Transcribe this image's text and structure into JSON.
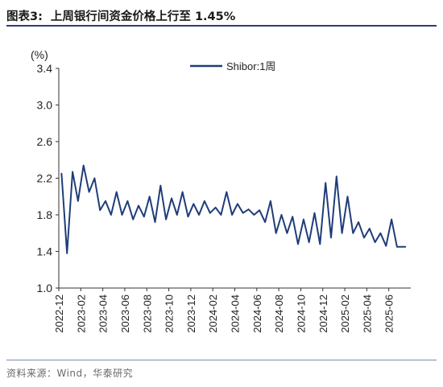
{
  "header": {
    "figure_label": "图表3:",
    "title": "上周银行间资金价格上行至 1.45%"
  },
  "source_note": "资料来源：Wind，华泰研究",
  "chart_data": {
    "type": "line",
    "unit_label": "(%)",
    "ylim": [
      1.0,
      3.4
    ],
    "y_ticks": [
      "1.0",
      "1.4",
      "1.8",
      "2.2",
      "2.6",
      "3.0",
      "3.4"
    ],
    "x_tick_labels": [
      "2022-12",
      "2023-02",
      "2023-04",
      "2023-06",
      "2023-08",
      "2023-10",
      "2023-12",
      "2024-02",
      "2024-04",
      "2024-06",
      "2024-08",
      "2024-10",
      "2024-12",
      "2025-02",
      "2025-04",
      "2025-06"
    ],
    "x_range": [
      "2022-12",
      "2025-07"
    ],
    "grid": false,
    "legend_position": "top-right",
    "line_color": "#1f3d7a",
    "series": [
      {
        "name": "Shibor:1周",
        "x": [
          "2022-12",
          "2022-12",
          "2023-01",
          "2023-01",
          "2023-02",
          "2023-02",
          "2023-03",
          "2023-03",
          "2023-04",
          "2023-04",
          "2023-05",
          "2023-05",
          "2023-06",
          "2023-06",
          "2023-07",
          "2023-07",
          "2023-08",
          "2023-08",
          "2023-09",
          "2023-09",
          "2023-10",
          "2023-10",
          "2023-11",
          "2023-11",
          "2023-12",
          "2023-12",
          "2024-01",
          "2024-01",
          "2024-02",
          "2024-02",
          "2024-03",
          "2024-03",
          "2024-04",
          "2024-04",
          "2024-05",
          "2024-05",
          "2024-06",
          "2024-06",
          "2024-07",
          "2024-07",
          "2024-08",
          "2024-08",
          "2024-09",
          "2024-09",
          "2024-10",
          "2024-10",
          "2024-11",
          "2024-11",
          "2024-12",
          "2024-12",
          "2025-01",
          "2025-01",
          "2025-02",
          "2025-02",
          "2025-03",
          "2025-03",
          "2025-04",
          "2025-04",
          "2025-05",
          "2025-05",
          "2025-06",
          "2025-06",
          "2025-07"
        ],
        "values": [
          2.25,
          1.38,
          2.27,
          1.95,
          2.34,
          2.05,
          2.2,
          1.85,
          1.95,
          1.8,
          2.05,
          1.8,
          1.95,
          1.75,
          1.9,
          1.78,
          2.0,
          1.72,
          2.12,
          1.75,
          1.98,
          1.8,
          2.05,
          1.78,
          1.92,
          1.8,
          1.95,
          1.82,
          1.88,
          1.8,
          2.05,
          1.8,
          1.92,
          1.82,
          1.86,
          1.8,
          1.85,
          1.72,
          1.95,
          1.6,
          1.8,
          1.6,
          1.78,
          1.48,
          1.75,
          1.5,
          1.82,
          1.48,
          2.15,
          1.55,
          2.22,
          1.6,
          2.0,
          1.6,
          1.72,
          1.55,
          1.65,
          1.5,
          1.6,
          1.46,
          1.75,
          1.45,
          1.45
        ]
      }
    ]
  }
}
